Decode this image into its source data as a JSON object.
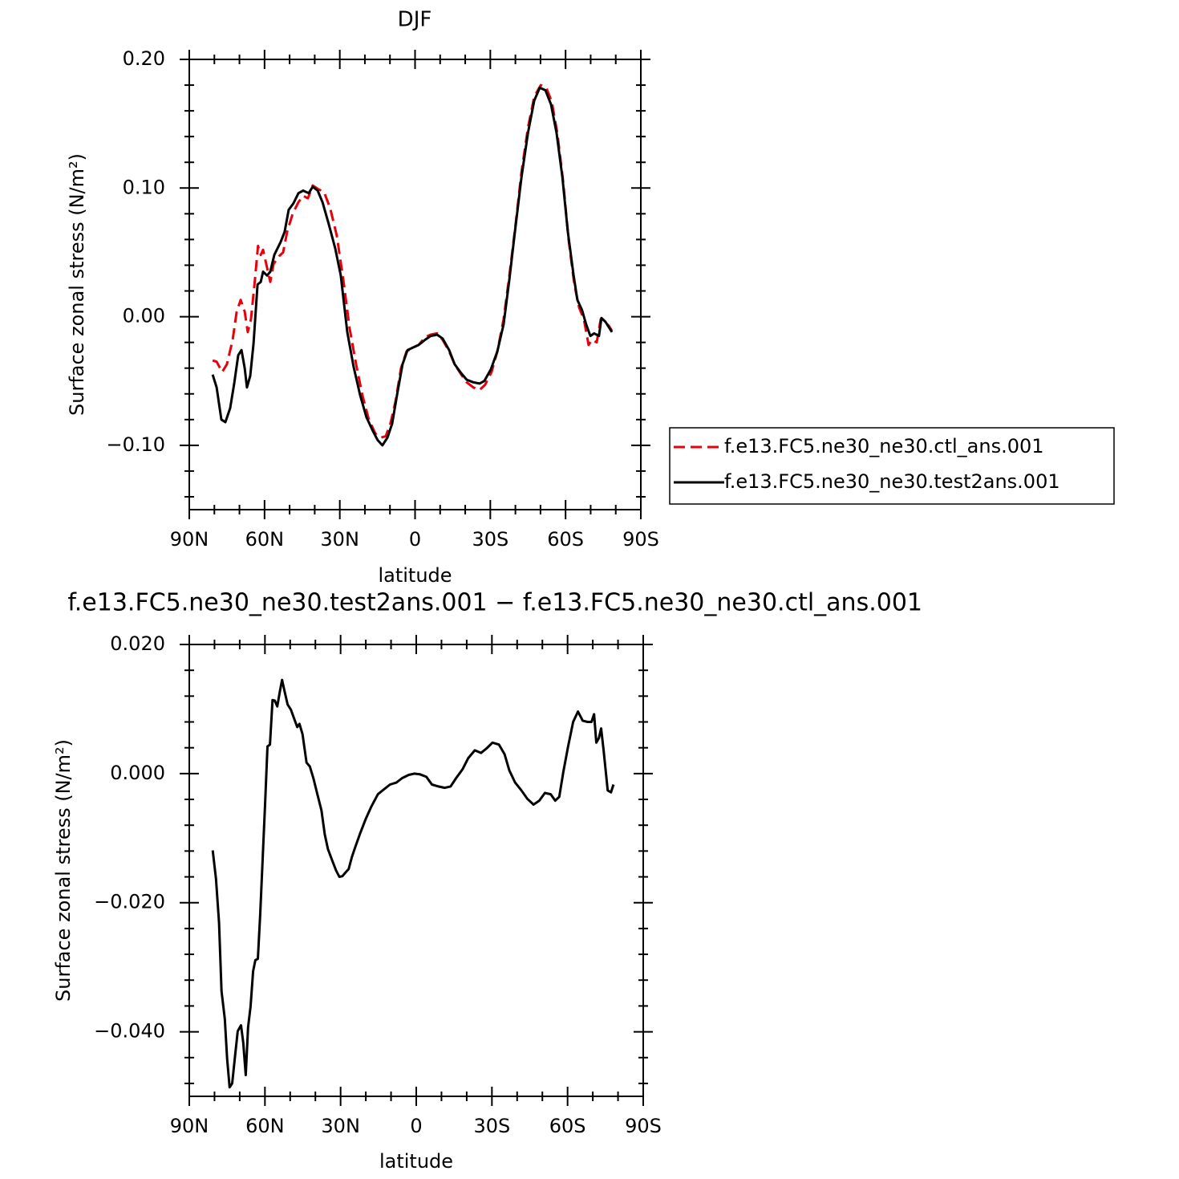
{
  "chart_data": [
    {
      "type": "line",
      "title": "DJF",
      "xlabel": "latitude",
      "ylabel": "Surface zonal stress (N/m²)",
      "xlim": [
        90,
        -90
      ],
      "xticks": [
        {
          "value": 90,
          "label": "90N"
        },
        {
          "value": 60,
          "label": "60N"
        },
        {
          "value": 30,
          "label": "30N"
        },
        0,
        {
          "value": -30,
          "label": "30S"
        },
        {
          "value": -60,
          "label": "60S"
        },
        {
          "value": -90,
          "label": "90S"
        }
      ],
      "xminorticks": [
        80,
        70,
        50,
        40,
        20,
        10,
        -10,
        -20,
        -40,
        -50,
        -70,
        -80
      ],
      "ylim": [
        -0.15,
        0.2
      ],
      "yticks": [
        {
          "value": 0.2,
          "label": "0.20"
        },
        {
          "value": 0.1,
          "label": "0.10"
        },
        {
          "value": 0,
          "label": "0.00"
        },
        {
          "value": -0.1,
          "label": "−0.10"
        }
      ],
      "yminorticks": [
        0.18,
        0.16,
        0.14,
        0.12,
        0.08,
        0.06,
        0.04,
        0.02,
        -0.02,
        -0.04,
        -0.06,
        -0.08,
        -0.12,
        -0.14
      ],
      "legend": "right",
      "series": [
        {
          "name": "f.e13.FC5.ne30_ne30.ctl_ans.001",
          "color": "#e8000b",
          "dash": true,
          "x": [
            80.7,
            79.1,
            76.9,
            75.0,
            72.7,
            71.1,
            69.5,
            67.9,
            66.7,
            65.4,
            63.8,
            62.6,
            61.5,
            60.6,
            59.0,
            57.7,
            56.4,
            54.2,
            52.6,
            51.0,
            48.8,
            46.5,
            44.6,
            42.7,
            40.8,
            38.5,
            36.3,
            33.8,
            31.2,
            28.6,
            26.1,
            23.5,
            21.0,
            18.4,
            15.8,
            13.6,
            11.7,
            9.8,
            7.8,
            5.6,
            3.4,
            0.8,
            -1.4,
            -4.0,
            -6.2,
            -8.8,
            -11.0,
            -13.6,
            -15.8,
            -18.4,
            -20.6,
            -23.2,
            -25.7,
            -27.9,
            -30.5,
            -32.8,
            -35.3,
            -37.6,
            -40.1,
            -42.4,
            -45.0,
            -47.5,
            -50.1,
            -52.3,
            -54.5,
            -56.7,
            -59.0,
            -61.2,
            -63.5,
            -65.4,
            -67.3,
            -69.2,
            -70.5,
            -72.4,
            -74.0,
            -75.6,
            -77.2,
            -78.5
          ],
          "values": [
            -0.034,
            -0.035,
            -0.043,
            -0.037,
            -0.018,
            0.004,
            0.013,
            0.004,
            -0.012,
            -0.002,
            0.029,
            0.055,
            0.048,
            0.052,
            0.038,
            0.027,
            0.041,
            0.047,
            0.05,
            0.066,
            0.08,
            0.089,
            0.094,
            0.092,
            0.102,
            0.099,
            0.097,
            0.084,
            0.063,
            0.029,
            -0.009,
            -0.037,
            -0.061,
            -0.08,
            -0.091,
            -0.094,
            -0.093,
            -0.083,
            -0.066,
            -0.04,
            -0.027,
            -0.024,
            -0.022,
            -0.016,
            -0.014,
            -0.013,
            -0.018,
            -0.027,
            -0.037,
            -0.045,
            -0.051,
            -0.055,
            -0.057,
            -0.053,
            -0.043,
            -0.027,
            -0.002,
            0.032,
            0.072,
            0.112,
            0.147,
            0.171,
            0.18,
            0.178,
            0.167,
            0.143,
            0.106,
            0.06,
            0.025,
            0.007,
            -0.002,
            -0.022,
            -0.018,
            -0.02,
            -0.002,
            -0.004,
            -0.007,
            -0.011
          ]
        },
        {
          "name": "f.e13.FC5.ne30_ne30.test2ans.001",
          "color": "#000000",
          "dash": false,
          "x": [
            80.7,
            79.1,
            77.2,
            75.6,
            73.7,
            72.1,
            70.5,
            69.2,
            67.9,
            67.0,
            65.7,
            64.4,
            62.8,
            61.5,
            60.6,
            59.0,
            57.7,
            56.1,
            53.6,
            52.0,
            50.4,
            48.5,
            46.5,
            44.6,
            42.4,
            40.8,
            38.8,
            36.9,
            34.4,
            31.8,
            29.6,
            27.0,
            24.5,
            21.9,
            19.4,
            16.8,
            14.9,
            13.0,
            11.0,
            9.1,
            7.2,
            5.0,
            3.0,
            0.8,
            -1.4,
            -4.0,
            -6.2,
            -8.8,
            -11.0,
            -13.6,
            -15.8,
            -18.4,
            -20.6,
            -23.2,
            -25.7,
            -27.6,
            -30.2,
            -32.8,
            -35.3,
            -37.6,
            -39.8,
            -42.4,
            -45.0,
            -47.5,
            -49.7,
            -52.0,
            -54.2,
            -56.4,
            -58.7,
            -60.9,
            -63.2,
            -64.7,
            -66.6,
            -68.2,
            -69.9,
            -71.4,
            -73.3,
            -74.3,
            -75.9,
            -77.5,
            -78.5
          ],
          "values": [
            -0.045,
            -0.055,
            -0.08,
            -0.082,
            -0.071,
            -0.052,
            -0.03,
            -0.026,
            -0.04,
            -0.055,
            -0.046,
            -0.021,
            0.025,
            0.027,
            0.035,
            0.032,
            0.035,
            0.048,
            0.058,
            0.066,
            0.083,
            0.088,
            0.096,
            0.098,
            0.096,
            0.101,
            0.098,
            0.089,
            0.072,
            0.053,
            0.032,
            -0.012,
            -0.039,
            -0.061,
            -0.078,
            -0.089,
            -0.096,
            -0.1,
            -0.094,
            -0.083,
            -0.061,
            -0.037,
            -0.026,
            -0.024,
            -0.022,
            -0.018,
            -0.015,
            -0.014,
            -0.017,
            -0.026,
            -0.037,
            -0.044,
            -0.049,
            -0.051,
            -0.052,
            -0.05,
            -0.041,
            -0.027,
            -0.006,
            0.029,
            0.066,
            0.108,
            0.143,
            0.168,
            0.178,
            0.176,
            0.165,
            0.143,
            0.109,
            0.066,
            0.032,
            0.013,
            0.005,
            -0.006,
            -0.015,
            -0.013,
            -0.015,
            -0.001,
            -0.004,
            -0.009,
            -0.012
          ]
        }
      ]
    },
    {
      "type": "line",
      "title": "f.e13.FC5.ne30_ne30.test2ans.001 − f.e13.FC5.ne30_ne30.ctl_ans.001",
      "xlabel": "latitude",
      "ylabel": "Surface zonal stress (N/m²)",
      "xlim": [
        90,
        -90
      ],
      "xticks": [
        {
          "value": 90,
          "label": "90N"
        },
        {
          "value": 60,
          "label": "60N"
        },
        {
          "value": 30,
          "label": "30N"
        },
        0,
        {
          "value": -30,
          "label": "30S"
        },
        {
          "value": -60,
          "label": "60S"
        },
        {
          "value": -90,
          "label": "90S"
        }
      ],
      "xminorticks": [
        80,
        70,
        50,
        40,
        20,
        10,
        -10,
        -20,
        -40,
        -50,
        -70,
        -80
      ],
      "ylim": [
        -0.05,
        0.02
      ],
      "yticks": [
        {
          "value": 0.02,
          "label": "0.020"
        },
        {
          "value": 0,
          "label": "0.000"
        },
        {
          "value": -0.02,
          "label": "−0.020"
        },
        {
          "value": -0.04,
          "label": "−0.040"
        }
      ],
      "yminorticks": [
        0.016,
        0.012,
        0.008,
        0.004,
        -0.004,
        -0.008,
        -0.012,
        -0.016,
        -0.024,
        -0.028,
        -0.032,
        -0.036,
        -0.044,
        -0.048
      ],
      "series": [
        {
          "color": "#000000",
          "dash": false,
          "x": [
            80.7,
            79.4,
            78.2,
            77.2,
            75.9,
            75.0,
            74.0,
            73.0,
            71.8,
            70.8,
            69.5,
            68.6,
            67.6,
            66.7,
            65.7,
            64.7,
            63.8,
            62.8,
            61.9,
            60.9,
            59.9,
            59.0,
            58.0,
            57.0,
            56.1,
            55.1,
            54.1,
            53.2,
            52.2,
            51.0,
            49.7,
            48.5,
            47.2,
            46.3,
            45.1,
            43.5,
            42.2,
            40.8,
            39.2,
            37.6,
            36.3,
            35.0,
            33.4,
            31.8,
            30.5,
            29.3,
            28.0,
            26.8,
            25.5,
            24.1,
            22.2,
            20.0,
            17.8,
            15.2,
            13.0,
            10.4,
            7.9,
            5.6,
            3.0,
            0.8,
            -1.4,
            -4.0,
            -6.2,
            -8.8,
            -11.3,
            -13.6,
            -15.8,
            -18.4,
            -20.6,
            -23.2,
            -25.7,
            -27.9,
            -30.2,
            -32.8,
            -35.0,
            -36.9,
            -39.2,
            -41.7,
            -44.0,
            -46.5,
            -48.8,
            -51.0,
            -53.3,
            -55.1,
            -56.7,
            -58.3,
            -60.2,
            -62.2,
            -64.1,
            -66.0,
            -67.9,
            -69.5,
            -70.5,
            -71.4,
            -72.4,
            -73.3,
            -74.3,
            -75.9,
            -77.2,
            -78.2
          ],
          "values": [
            -0.0119,
            -0.0163,
            -0.0231,
            -0.0337,
            -0.038,
            -0.0442,
            -0.0486,
            -0.048,
            -0.0436,
            -0.0399,
            -0.039,
            -0.0417,
            -0.0467,
            -0.0393,
            -0.0361,
            -0.0306,
            -0.0289,
            -0.0287,
            -0.0219,
            -0.0132,
            -0.0045,
            0.0042,
            0.0045,
            0.0114,
            0.0113,
            0.0104,
            0.0127,
            0.0145,
            0.0127,
            0.0107,
            0.0099,
            0.0086,
            0.0072,
            0.0077,
            0.0061,
            0.0017,
            0.0011,
            -0.0007,
            -0.0032,
            -0.0057,
            -0.0094,
            -0.0117,
            -0.0134,
            -0.015,
            -0.016,
            -0.0159,
            -0.0153,
            -0.0148,
            -0.0129,
            -0.0113,
            -0.0092,
            -0.007,
            -0.0051,
            -0.0032,
            -0.0025,
            -0.0017,
            -0.0014,
            -0.0007,
            -0.0002,
            0,
            -0.0001,
            -0.0005,
            -0.0017,
            -0.002,
            -0.0022,
            -0.002,
            -0.0007,
            0.0007,
            0.0024,
            0.0036,
            0.0032,
            0.0039,
            0.0048,
            0.0045,
            0.003,
            0.0005,
            -0.0014,
            -0.0026,
            -0.0039,
            -0.0048,
            -0.0042,
            -0.003,
            -0.0032,
            -0.0042,
            -0.0036,
            0.0002,
            0.0042,
            0.008,
            0.0096,
            0.0082,
            0.008,
            0.008,
            0.0092,
            0.0048,
            0.0055,
            0.007,
            0.0036,
            -0.0026,
            -0.0029,
            -0.0017
          ]
        }
      ]
    }
  ]
}
